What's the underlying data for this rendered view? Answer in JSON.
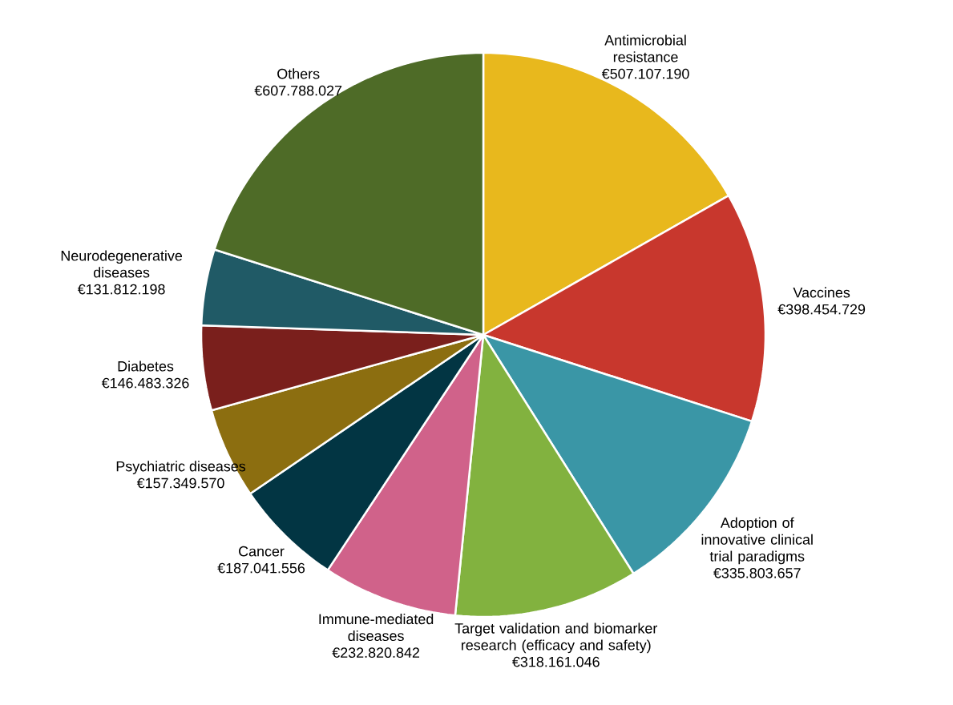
{
  "chart_data": {
    "type": "pie",
    "categories": [
      "Antimicrobial resistance",
      "Vaccines",
      "Adoption of innovative clinical trial paradigms",
      "Target validation and biomarker research (efficacy and safety)",
      "Immune-mediated diseases",
      "Cancer",
      "Psychiatric diseases",
      "Diabetes",
      "Neurodegenerative diseases",
      "Others"
    ],
    "values": [
      507107190,
      398454729,
      335803657,
      318161046,
      232820842,
      187041556,
      157349570,
      146483326,
      131812198,
      607788027
    ],
    "value_labels": [
      "€507.107.190",
      "€398.454.729",
      "€335.803.657",
      "€318.161.046",
      "€232.820.842",
      "€187.041.556",
      "€157.349.570",
      "€146.483.326",
      "€131.812.198",
      "€607.788.027"
    ],
    "colors": [
      "#e8b81d",
      "#c8372d",
      "#3a96a6",
      "#82b23f",
      "#d0628a",
      "#023543",
      "#8c6e10",
      "#7a1f1c",
      "#205a66",
      "#4e6b27"
    ]
  }
}
